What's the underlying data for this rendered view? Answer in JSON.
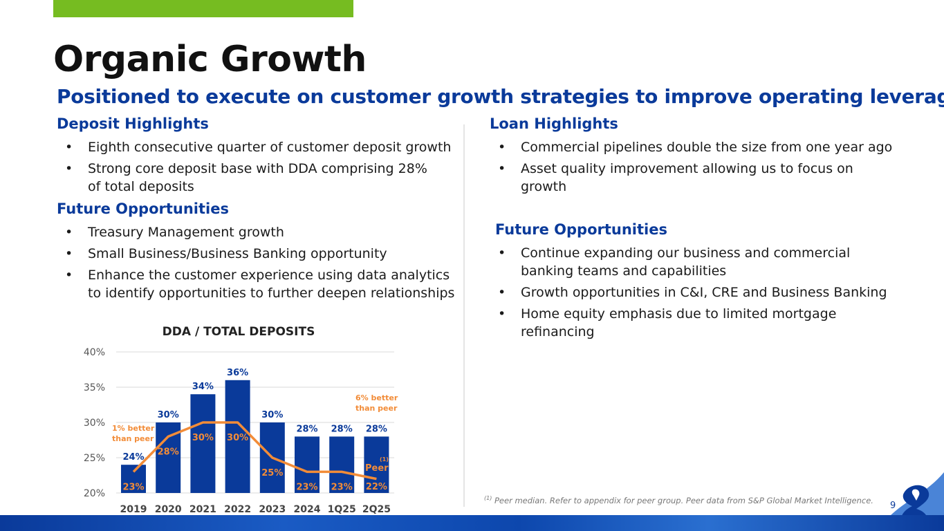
{
  "title": "Organic Growth",
  "subtitle": "Positioned to execute on customer growth strategies to improve operating leverage",
  "left": {
    "deposit_heading": "Deposit Highlights",
    "deposit_bullets": [
      "Eighth consecutive quarter of customer deposit growth",
      "Strong core deposit base with DDA comprising 28% of total deposits"
    ],
    "future_heading": "Future Opportunities",
    "future_bullets": [
      "Treasury Management growth",
      "Small Business/Business Banking opportunity",
      "Enhance the customer experience using data analytics to identify opportunities to further deepen relationships"
    ]
  },
  "right": {
    "loan_heading": "Loan Highlights",
    "loan_bullets": [
      "Commercial pipelines double the size from one year ago",
      "Asset quality improvement allowing us to focus on growth"
    ],
    "future_heading": "Future Opportunities",
    "future_bullets": [
      "Continue expanding our business and commercial banking teams and capabilities",
      "Growth opportunities in C&I, CRE and Business Banking",
      "Home equity emphasis due to limited mortgage refinancing"
    ]
  },
  "chart_data": {
    "type": "bar",
    "title": "DDA / TOTAL DEPOSITS",
    "categories": [
      "2019",
      "2020",
      "2021",
      "2022",
      "2023",
      "2024",
      "1Q25",
      "2Q25"
    ],
    "series": [
      {
        "name": "DDA / Total Deposits",
        "type": "bar",
        "values": [
          24,
          30,
          34,
          36,
          30,
          28,
          28,
          28
        ],
        "color": "#0a3a9a"
      },
      {
        "name": "Peer",
        "type": "line",
        "values": [
          23,
          28,
          30,
          30,
          25,
          23,
          23,
          22
        ],
        "color": "#f28c38"
      }
    ],
    "ylim": [
      20,
      40
    ],
    "yticks": [
      "20%",
      "25%",
      "30%",
      "35%",
      "40%"
    ],
    "ytick_values": [
      20,
      25,
      30,
      35,
      40
    ],
    "value_suffix": "%",
    "annotations": {
      "left_line1": "1% better",
      "left_line2": "than peer",
      "right_line1": "6% better",
      "right_line2": "than peer",
      "peer_tag": "Peer",
      "peer_sup": "(1)"
    }
  },
  "footnote": {
    "marker": "(1)",
    "text": " Peer median. Refer to appendix for peer group.  Peer data from S&P Global Market Intelligence."
  },
  "page_number": "9"
}
